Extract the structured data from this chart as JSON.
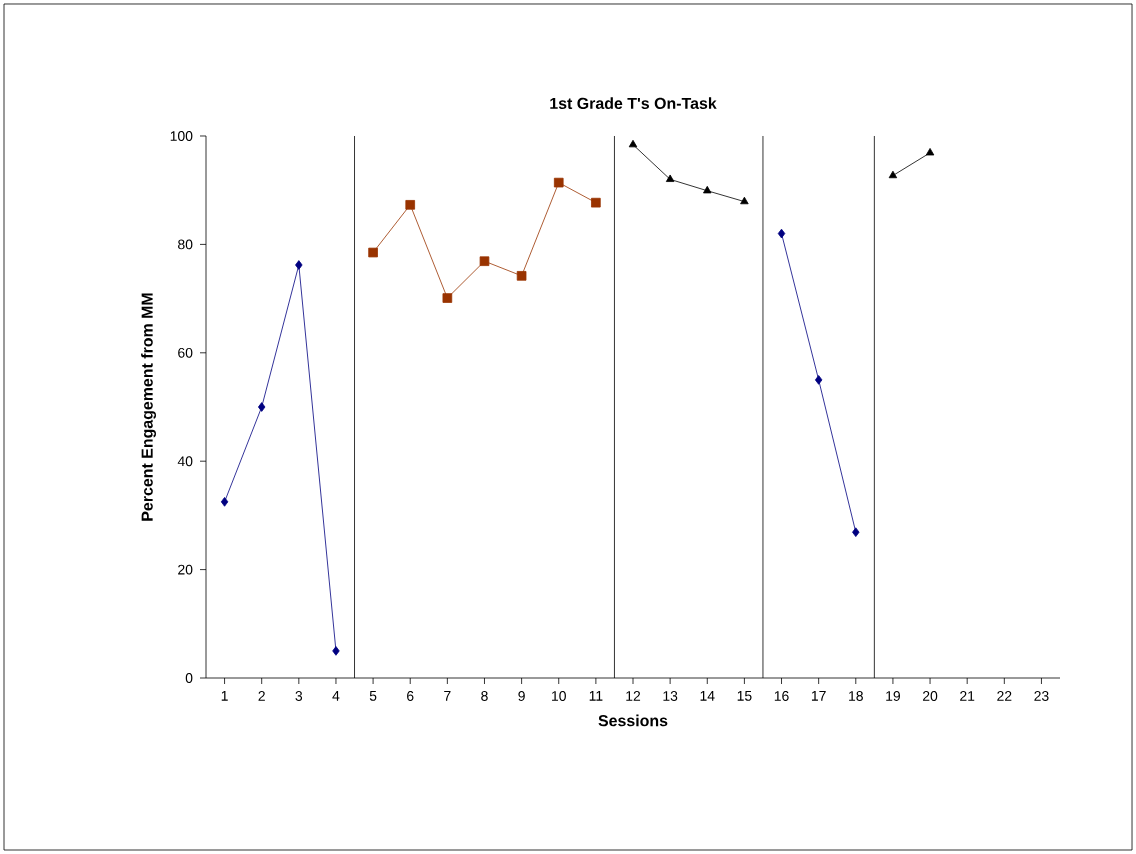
{
  "chart_data": {
    "type": "line",
    "title": "1st Grade T's On-Task",
    "xlabel": "Sessions",
    "ylabel": "Percent Engagement from MM",
    "xlim": [
      0.5,
      23.5
    ],
    "xticks": [
      1,
      2,
      3,
      4,
      5,
      6,
      7,
      8,
      9,
      10,
      11,
      12,
      13,
      14,
      15,
      16,
      17,
      18,
      19,
      20,
      21,
      22,
      23
    ],
    "ylim": [
      0,
      100
    ],
    "yticks": [
      0,
      20,
      40,
      60,
      80,
      100
    ],
    "line_style": "solid",
    "ref_lines": [
      {
        "axis": "x",
        "value": 4.5,
        "color": "#000000"
      },
      {
        "axis": "x",
        "value": 11.5,
        "color": "#000000"
      },
      {
        "axis": "x",
        "value": 15.5,
        "color": "#000000"
      },
      {
        "axis": "x",
        "value": 18.5,
        "color": "#000000"
      }
    ],
    "series": [
      {
        "color": "#000080",
        "marker": "diamond",
        "x": [
          1,
          2,
          3,
          4
        ],
        "values": [
          32.5,
          50,
          76.2,
          5
        ]
      },
      {
        "color": "#993300",
        "marker": "square",
        "x": [
          5,
          6,
          7,
          8,
          9,
          10,
          11
        ],
        "values": [
          78.5,
          87.3,
          70.1,
          76.9,
          74.2,
          91.4,
          87.7
        ]
      },
      {
        "color": "#000000",
        "marker": "triangle",
        "x": [
          12,
          13,
          14,
          15
        ],
        "values": [
          98.4,
          92,
          89.9,
          87.9
        ]
      },
      {
        "color": "#000080",
        "marker": "diamond",
        "x": [
          16,
          17,
          18
        ],
        "values": [
          82,
          55,
          26.9
        ]
      },
      {
        "color": "#000000",
        "marker": "triangle",
        "x": [
          19,
          20
        ],
        "values": [
          92.7,
          96.9
        ]
      }
    ]
  }
}
